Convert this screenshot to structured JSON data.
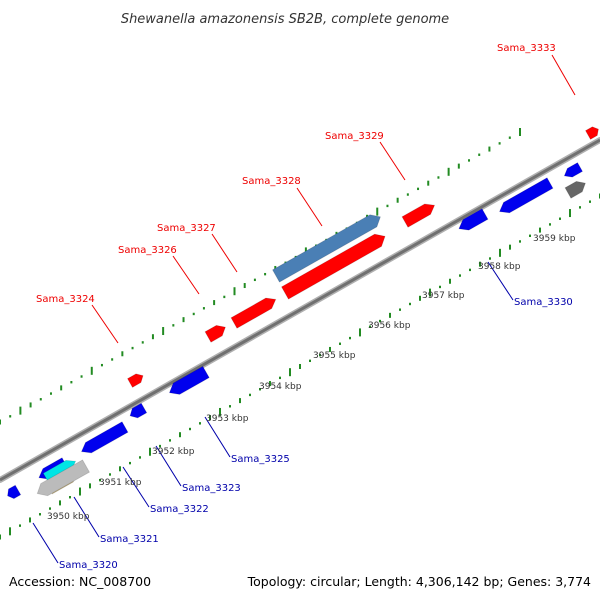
{
  "title": "Shewanella amazonensis SB2B, complete genome",
  "footer": {
    "accession": "Accession: NC_008700",
    "summary": "Topology: circular; Length: 4,306,142 bp; Genes: 3,774"
  },
  "colors": {
    "forward_label": "#ee0000",
    "reverse_label": "#0000aa",
    "forward_gene": "#ff0000",
    "reverse_gene": "#0000ee",
    "highlight_gene": "#4a7fb5",
    "gc_skew": "#228b22",
    "backbone": "#808080"
  },
  "scale_ticks": [
    {
      "label": "3950 kbp"
    },
    {
      "label": "3951 kbp"
    },
    {
      "label": "3952 kbp"
    },
    {
      "label": "3953 kbp"
    },
    {
      "label": "3954 kbp"
    },
    {
      "label": "3955 kbp"
    },
    {
      "label": "3956 kbp"
    },
    {
      "label": "3957 kbp"
    },
    {
      "label": "3958 kbp"
    },
    {
      "label": "3959 kbp"
    }
  ],
  "forward_gene_labels": [
    {
      "name": "Sama_3324"
    },
    {
      "name": "Sama_3326"
    },
    {
      "name": "Sama_3327"
    },
    {
      "name": "Sama_3328"
    },
    {
      "name": "Sama_3329"
    },
    {
      "name": "Sama_3333"
    }
  ],
  "reverse_gene_labels": [
    {
      "name": "Sama_3320"
    },
    {
      "name": "Sama_3321"
    },
    {
      "name": "Sama_3322"
    },
    {
      "name": "Sama_3323"
    },
    {
      "name": "Sama_3325"
    },
    {
      "name": "Sama_3330"
    }
  ]
}
